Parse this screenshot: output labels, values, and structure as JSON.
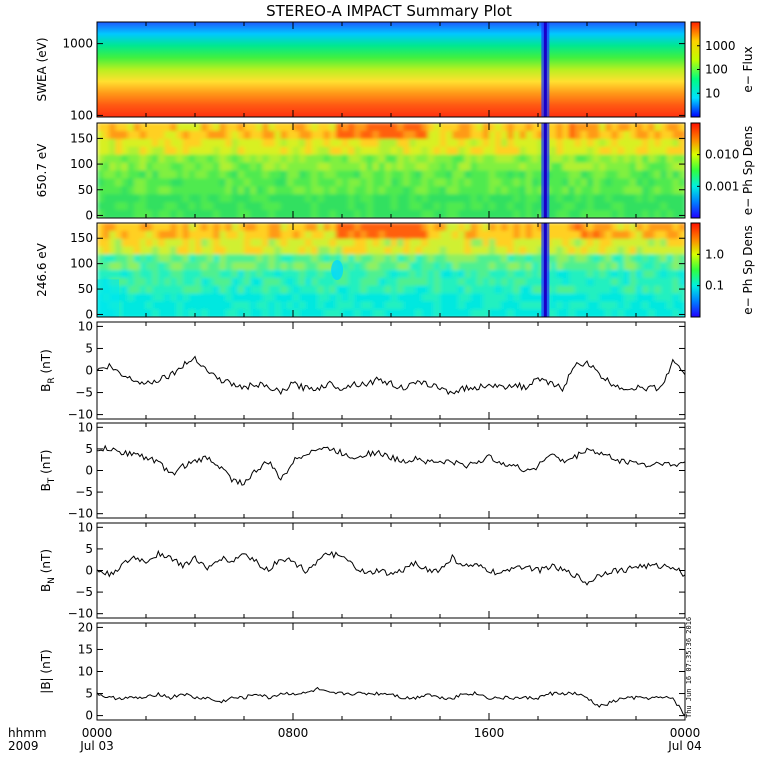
{
  "chart_data": {
    "type": "line",
    "title": "STEREO-A IMPACT Summary Plot",
    "timestamp": "Thu Jun 16 07:35:36 2016",
    "x_axis": {
      "tick_labels_top": [
        "0000",
        "0800",
        "1600",
        "0000"
      ],
      "tick_labels_bottom": [
        "Jul 03",
        "",
        "",
        "Jul 04"
      ],
      "tick_hours": [
        0,
        8,
        16,
        24
      ],
      "range_hours": [
        0,
        24
      ],
      "left_label_top": "hhmm",
      "left_label_bottom": "2009"
    },
    "spectrograms": [
      {
        "name": "swea",
        "ylabel": "SWEA (eV)",
        "colorbar_label": "e− Flux",
        "y_log": true,
        "ylim": [
          95,
          2000
        ],
        "y_ticks": [
          100,
          1000
        ],
        "y_tick_labels": [
          "100",
          "1000"
        ],
        "cbar_ticks": [
          "10",
          "100",
          "1000"
        ],
        "cbar_colors": [
          "#0000ff",
          "#00e0ff",
          "#00ff80",
          "#c0ff00",
          "#ffd000",
          "#ff2000"
        ],
        "bands_top_to_bottom": [
          "#1e5aff",
          "#00c8ff",
          "#00e890",
          "#40f040",
          "#b8f020",
          "#ffe030",
          "#ff9a18",
          "#ff5a12",
          "#ff3010"
        ]
      },
      {
        "name": "pad-650",
        "ylabel": "650.7 eV",
        "colorbar_label": "e− Ph Sp Dens",
        "ylim": [
          -5,
          180
        ],
        "y_ticks": [
          0,
          50,
          100,
          150
        ],
        "y_tick_labels": [
          "0",
          "50",
          "100",
          "150"
        ],
        "cbar_ticks": [
          "0.001",
          "0.010"
        ],
        "cbar_colors": [
          "#2000ff",
          "#0080ff",
          "#00f0e0",
          "#30ff40",
          "#d8ff00",
          "#ff8000",
          "#ff1000"
        ]
      },
      {
        "name": "pad-246",
        "ylabel": "246.6 eV",
        "colorbar_label": "e− Ph Sp Dens",
        "ylim": [
          -5,
          180
        ],
        "y_ticks": [
          0,
          50,
          100,
          150
        ],
        "y_tick_labels": [
          "0",
          "50",
          "100",
          "150"
        ],
        "cbar_ticks": [
          "0.1",
          "1.0"
        ],
        "cbar_colors": [
          "#2000ff",
          "#0080ff",
          "#00f0e0",
          "#30ff40",
          "#d8ff00",
          "#ff8000",
          "#ff1000"
        ]
      }
    ],
    "spectrogram_dropout_hour": 18.3,
    "line_panels": [
      {
        "name": "br",
        "ylabel": "B",
        "ylabel_sub": "R",
        "ylabel_unit": " (nT)",
        "ylim": [
          -11,
          11
        ],
        "y_ticks": [
          -10,
          -5,
          0,
          5,
          10
        ],
        "y_tick_labels": [
          "−10",
          "−5",
          "0",
          "5",
          "10"
        ],
        "x": [
          0,
          0.5,
          1,
          1.5,
          2,
          2.5,
          3,
          3.5,
          4,
          4.5,
          5,
          5.5,
          6,
          6.5,
          7,
          7.5,
          8,
          8.5,
          9,
          9.5,
          10,
          10.5,
          11,
          11.5,
          12,
          12.5,
          13,
          13.5,
          14,
          14.5,
          15,
          15.5,
          16,
          16.5,
          17,
          17.5,
          18,
          18.5,
          19,
          19.5,
          20,
          20.5,
          21,
          21.5,
          22,
          22.5,
          23,
          23.5,
          24
        ],
        "y": [
          0,
          1,
          -1,
          -2,
          -3,
          -2,
          -1,
          1,
          3,
          0,
          -2,
          -3,
          -4,
          -3,
          -4,
          -5,
          -3,
          -4,
          -4,
          -3,
          -4,
          -3,
          -3,
          -2,
          -3,
          -4,
          -3,
          -3,
          -4,
          -5,
          -4,
          -4,
          -3,
          -4,
          -3,
          -4,
          -2,
          -3,
          -4,
          1,
          2,
          -1,
          -3,
          -4,
          -4,
          -4,
          -4,
          2,
          -1
        ]
      },
      {
        "name": "bt",
        "ylabel": "B",
        "ylabel_sub": "T",
        "ylabel_unit": " (nT)",
        "ylim": [
          -11,
          11
        ],
        "y_ticks": [
          -10,
          -5,
          0,
          5,
          10
        ],
        "y_tick_labels": [
          "−10",
          "−5",
          "0",
          "5",
          "10"
        ],
        "x": [
          0,
          0.5,
          1,
          1.5,
          2,
          2.5,
          3,
          3.5,
          4,
          4.5,
          5,
          5.5,
          6,
          6.5,
          7,
          7.5,
          8,
          8.5,
          9,
          9.5,
          10,
          10.5,
          11,
          11.5,
          12,
          12.5,
          13,
          13.5,
          14,
          14.5,
          15,
          15.5,
          16,
          16.5,
          17,
          17.5,
          18,
          18.5,
          19,
          19.5,
          20,
          20.5,
          21,
          21.5,
          22,
          22.5,
          23,
          23.5,
          24
        ],
        "y": [
          5,
          5,
          4,
          4,
          3,
          2,
          -1,
          1,
          2,
          3,
          1,
          -2,
          -3,
          0,
          2,
          -2,
          2,
          4,
          5,
          5,
          4,
          3,
          4,
          4,
          3,
          2,
          3,
          2,
          2,
          2,
          1,
          2,
          3,
          2,
          1,
          0,
          1,
          4,
          2,
          3,
          5,
          4,
          3,
          2,
          2,
          1,
          2,
          1,
          2
        ]
      },
      {
        "name": "bn",
        "ylabel": "B",
        "ylabel_sub": "N",
        "ylabel_unit": " (nT)",
        "ylim": [
          -11,
          11
        ],
        "y_ticks": [
          -10,
          -5,
          0,
          5,
          10
        ],
        "y_tick_labels": [
          "−10",
          "−5",
          "0",
          "5",
          "10"
        ],
        "x": [
          0,
          0.5,
          1,
          1.5,
          2,
          2.5,
          3,
          3.5,
          4,
          4.5,
          5,
          5.5,
          6,
          6.5,
          7,
          7.5,
          8,
          8.5,
          9,
          9.5,
          10,
          10.5,
          11,
          11.5,
          12,
          12.5,
          13,
          13.5,
          14,
          14.5,
          15,
          15.5,
          16,
          16.5,
          17,
          17.5,
          18,
          18.5,
          19,
          19.5,
          20,
          20.5,
          21,
          21.5,
          22,
          22.5,
          23,
          23.5,
          24
        ],
        "y": [
          0,
          -1,
          1,
          3,
          2,
          4,
          3,
          1,
          3,
          0,
          3,
          2,
          4,
          2,
          0,
          3,
          2,
          0,
          2,
          4,
          3,
          1,
          -1,
          0,
          -1,
          0,
          2,
          0,
          0,
          3,
          1,
          1,
          0,
          -1,
          1,
          1,
          0,
          1,
          0,
          -1,
          -3,
          -1,
          0,
          0,
          1,
          1,
          1,
          1,
          -1
        ]
      },
      {
        "name": "btot",
        "ylabel": "|B| (nT)",
        "ylabel_sub": "",
        "ylabel_unit": "",
        "ylim": [
          -1,
          21
        ],
        "y_ticks": [
          0,
          5,
          10,
          15,
          20
        ],
        "y_tick_labels": [
          "0",
          "5",
          "10",
          "15",
          "20"
        ],
        "x": [
          0,
          0.5,
          1,
          1.5,
          2,
          2.5,
          3,
          3.5,
          4,
          4.5,
          5,
          5.5,
          6,
          6.5,
          7,
          7.5,
          8,
          8.5,
          9,
          9.5,
          10,
          10.5,
          11,
          11.5,
          12,
          12.5,
          13,
          13.5,
          14,
          14.5,
          15,
          15.5,
          16,
          16.5,
          17,
          17.5,
          18,
          18.5,
          19,
          19.5,
          20,
          20.5,
          21,
          21.5,
          22,
          22.5,
          23,
          23.5,
          24
        ],
        "y": [
          5,
          4,
          4,
          4,
          4,
          5,
          4,
          5,
          4,
          4,
          3,
          4,
          4,
          5,
          4,
          5,
          5,
          5,
          6,
          5,
          5,
          5,
          5,
          5,
          5,
          4,
          4,
          5,
          4,
          4,
          5,
          5,
          4,
          4,
          4,
          4,
          4,
          5,
          5,
          5,
          4,
          2,
          3,
          4,
          4,
          4,
          4,
          4,
          0
        ]
      }
    ]
  }
}
